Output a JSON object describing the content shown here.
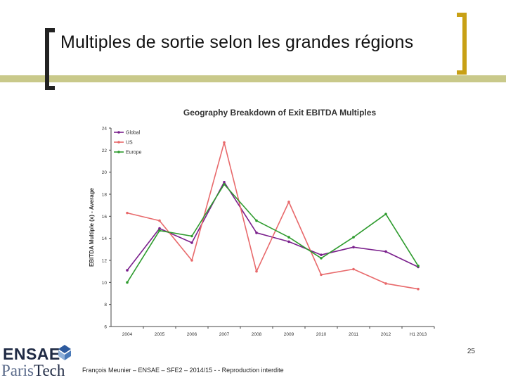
{
  "slide": {
    "title": "Multiples de sortie selon les grandes régions",
    "page_number": "25",
    "footer": "François Meunier – ENSAE – SFE2 – 2014/15 - - Reproduction interdite"
  },
  "logo": {
    "line1": "ENSAE",
    "line2a": "Paris",
    "line2b": "Tech"
  },
  "colors": {
    "global": "#7a1f8c",
    "us": "#e8696b",
    "europe": "#2e9b2e",
    "axis": "#444444",
    "accent": "#c8a015"
  },
  "chart_data": {
    "type": "line",
    "title": "Geography Breakdown of Exit EBITDA Multiples",
    "xlabel": "",
    "ylabel": "EBITDA Multiple (x) - Average",
    "categories": [
      "2004",
      "2005",
      "2006",
      "2007",
      "2008",
      "2009",
      "2010",
      "2011",
      "2012",
      "H1 2013"
    ],
    "ylim": [
      6,
      24
    ],
    "yticks": [
      6,
      8,
      10,
      12,
      14,
      16,
      18,
      20,
      22,
      24
    ],
    "legend_position": "top-left",
    "series": [
      {
        "name": "Global",
        "values": [
          11.1,
          14.9,
          13.6,
          19.1,
          14.5,
          13.7,
          12.5,
          13.2,
          12.8,
          11.4
        ]
      },
      {
        "name": "US",
        "values": [
          16.3,
          15.6,
          12.0,
          22.7,
          11.0,
          17.3,
          10.7,
          11.2,
          9.9,
          9.4
        ]
      },
      {
        "name": "Europe",
        "values": [
          10.0,
          14.7,
          14.2,
          18.9,
          15.6,
          14.1,
          12.2,
          14.1,
          16.2,
          11.5
        ]
      }
    ]
  }
}
